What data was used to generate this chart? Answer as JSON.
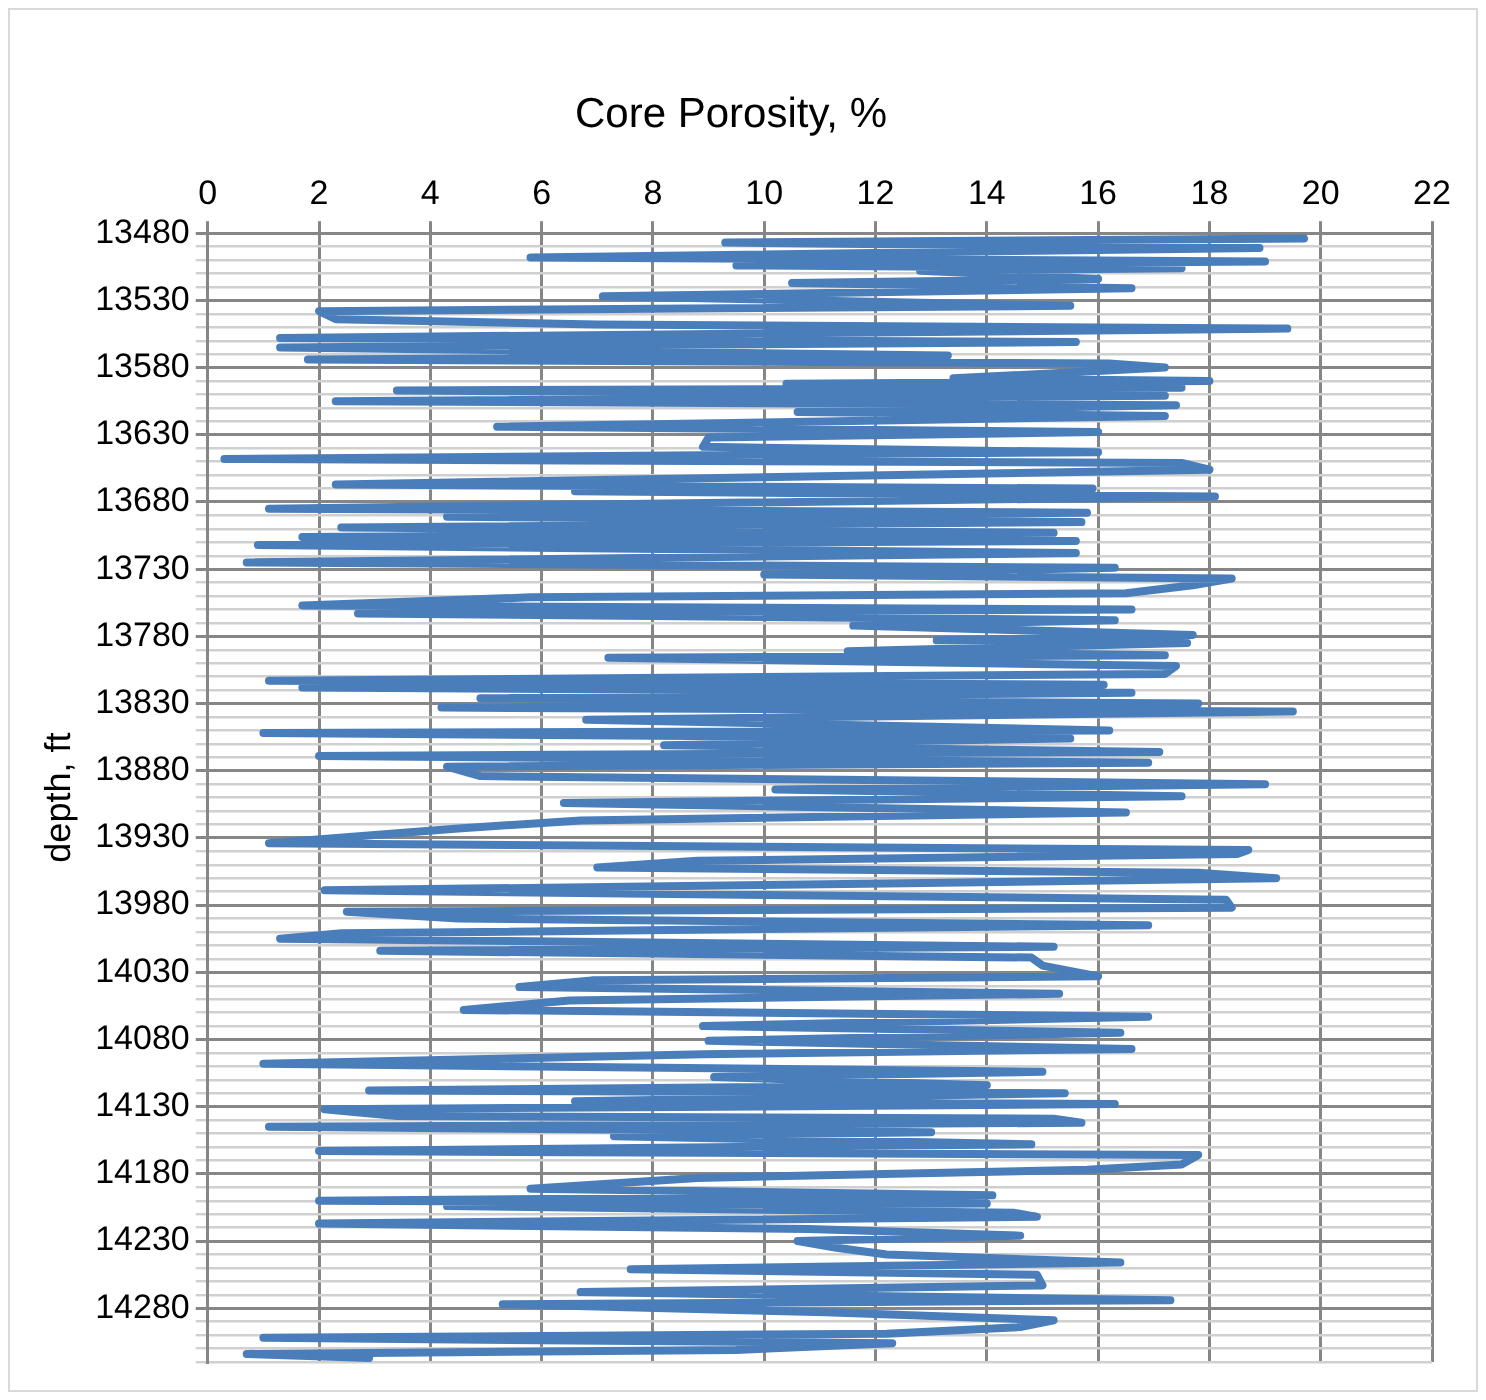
{
  "chart_data": {
    "type": "line",
    "title": "Core Porosity, %",
    "ylabel": "depth, ft",
    "color": "#4a7ebb",
    "grid": true,
    "legend": false,
    "marker": "none",
    "xlim": [
      0,
      22
    ],
    "xticks": [
      0,
      2,
      4,
      6,
      8,
      10,
      12,
      14,
      16,
      18,
      20,
      22
    ],
    "ylim": [
      14320,
      13480
    ],
    "yticks": [
      13480,
      {
        "value": 13490,
        "label": null
      },
      {
        "value": 13500,
        "label": null
      },
      {
        "value": 13510,
        "label": null
      },
      {
        "value": 13520,
        "label": null
      },
      13530,
      {
        "value": 13540,
        "label": null
      },
      {
        "value": 13550,
        "label": null
      },
      {
        "value": 13560,
        "label": null
      },
      {
        "value": 13570,
        "label": null
      },
      13580,
      {
        "value": 13590,
        "label": null
      },
      {
        "value": 13600,
        "label": null
      },
      {
        "value": 13610,
        "label": null
      },
      {
        "value": 13620,
        "label": null
      },
      13630,
      {
        "value": 13640,
        "label": null
      },
      {
        "value": 13650,
        "label": null
      },
      {
        "value": 13660,
        "label": null
      },
      {
        "value": 13670,
        "label": null
      },
      13680,
      {
        "value": 13690,
        "label": null
      },
      {
        "value": 13700,
        "label": null
      },
      {
        "value": 13710,
        "label": null
      },
      {
        "value": 13720,
        "label": null
      },
      13730,
      {
        "value": 13740,
        "label": null
      },
      {
        "value": 13750,
        "label": null
      },
      {
        "value": 13760,
        "label": null
      },
      {
        "value": 13770,
        "label": null
      },
      13780,
      {
        "value": 13790,
        "label": null
      },
      {
        "value": 13800,
        "label": null
      },
      {
        "value": 13810,
        "label": null
      },
      {
        "value": 13820,
        "label": null
      },
      13830,
      {
        "value": 13840,
        "label": null
      },
      {
        "value": 13850,
        "label": null
      },
      {
        "value": 13860,
        "label": null
      },
      {
        "value": 13870,
        "label": null
      },
      13880,
      {
        "value": 13890,
        "label": null
      },
      {
        "value": 13900,
        "label": null
      },
      {
        "value": 13910,
        "label": null
      },
      {
        "value": 13920,
        "label": null
      },
      13930,
      {
        "value": 13940,
        "label": null
      },
      {
        "value": 13950,
        "label": null
      },
      {
        "value": 13960,
        "label": null
      },
      {
        "value": 13970,
        "label": null
      },
      13980,
      {
        "value": 13990,
        "label": null
      },
      {
        "value": 14000,
        "label": null
      },
      {
        "value": 14010,
        "label": null
      },
      {
        "value": 14020,
        "label": null
      },
      14030,
      {
        "value": 14040,
        "label": null
      },
      {
        "value": 14050,
        "label": null
      },
      {
        "value": 14060,
        "label": null
      },
      {
        "value": 14070,
        "label": null
      },
      14080,
      {
        "value": 14090,
        "label": null
      },
      {
        "value": 14100,
        "label": null
      },
      {
        "value": 14110,
        "label": null
      },
      {
        "value": 14120,
        "label": null
      },
      14130,
      {
        "value": 14140,
        "label": null
      },
      {
        "value": 14150,
        "label": null
      },
      {
        "value": 14160,
        "label": null
      },
      {
        "value": 14170,
        "label": null
      },
      14180,
      {
        "value": 14190,
        "label": null
      },
      {
        "value": 14200,
        "label": null
      },
      {
        "value": 14210,
        "label": null
      },
      {
        "value": 14220,
        "label": null
      },
      14230,
      {
        "value": 14240,
        "label": null
      },
      {
        "value": 14250,
        "label": null
      },
      {
        "value": 14260,
        "label": null
      },
      {
        "value": 14270,
        "label": null
      },
      14280,
      {
        "value": 14290,
        "label": null
      },
      {
        "value": 14300,
        "label": null
      },
      {
        "value": 14310,
        "label": null
      },
      {
        "value": 14320,
        "label": null
      }
    ],
    "x": [
      19.7,
      9.3,
      18.9,
      5.8,
      19.0,
      9.5,
      17.5,
      12.8,
      16.0,
      10.5,
      16.6,
      7.1,
      15.5,
      2.0,
      2.3,
      7.0,
      19.4,
      1.3,
      15.6,
      1.3,
      13.3,
      1.8,
      16.2,
      17.2,
      13.4,
      18.0,
      10.4,
      17.5,
      3.4,
      17.2,
      2.3,
      17.4,
      10.6,
      17.2,
      5.2,
      16.0,
      9.0,
      8.9,
      16.0,
      0.3,
      17.5,
      18.0,
      2.3,
      15.9,
      6.6,
      18.1,
      1.1,
      15.8,
      4.3,
      15.7,
      2.4,
      15.2,
      1.7,
      15.6,
      0.9,
      15.6,
      0.7,
      16.3,
      10.0,
      18.4,
      17.7,
      16.5,
      5.8,
      1.7,
      16.6,
      2.7,
      16.3,
      11.6,
      17.7,
      13.1,
      17.6,
      11.5,
      17.2,
      7.2,
      17.4,
      17.2,
      1.1,
      16.1,
      1.7,
      16.6,
      4.9,
      17.8,
      4.2,
      19.5,
      6.8,
      16.2,
      1.0,
      15.5,
      8.2,
      17.1,
      2.0,
      16.9,
      4.3,
      4.9,
      19.0,
      10.2,
      17.5,
      6.4,
      16.5,
      6.7,
      4.5,
      1.1,
      18.7,
      18.5,
      8.8,
      7.0,
      17.8,
      19.2,
      12.2,
      2.1,
      18.3,
      18.4,
      2.5,
      4.5,
      16.9,
      2.4,
      1.3,
      15.2,
      3.1,
      14.8,
      15.0,
      16.0,
      6.9,
      5.6,
      15.3,
      6.5,
      4.6,
      16.9,
      8.9,
      16.4,
      9.0,
      16.6,
      8.9,
      1.0,
      15.0,
      9.1,
      14.0,
      2.9,
      15.4,
      6.6,
      16.3,
      2.1,
      3.4,
      15.2,
      15.7,
      1.1,
      13.0,
      7.3,
      14.8,
      2.0,
      17.8,
      17.5,
      15.8,
      8.8,
      5.8,
      14.1,
      2.0,
      14.0,
      4.3,
      14.5,
      14.9,
      2.0,
      10.8,
      14.6,
      10.6,
      11.3,
      12.2,
      16.4,
      7.6,
      14.9,
      15.0,
      6.7,
      17.3,
      5.3,
      11.1,
      15.2,
      14.6,
      12.2,
      1.0,
      12.3,
      9.5,
      0.7,
      2.9
    ],
    "values": [
      13484,
      13487,
      13491,
      13498,
      13501,
      13504,
      13506,
      13508,
      13514,
      13517,
      13521,
      13527,
      13534,
      13538,
      13544,
      13548,
      13551,
      13558,
      13561,
      13565,
      13571,
      13574,
      13577,
      13580,
      13588,
      13590,
      13592,
      13595,
      13597,
      13601,
      13605,
      13608,
      13613,
      13616,
      13624,
      13628,
      13632,
      13639,
      13643,
      13648,
      13651,
      13656,
      13667,
      13670,
      13672,
      13676,
      13685,
      13688,
      13691,
      13695,
      13699,
      13703,
      13706,
      13709,
      13712,
      13718,
      13725,
      13729,
      13734,
      13737,
      13742,
      13748,
      13751,
      13757,
      13760,
      13763,
      13768,
      13772,
      13779,
      13783,
      13785,
      13791,
      13794,
      13796,
      13802,
      13808,
      13813,
      13816,
      13818,
      13822,
      13826,
      13830,
      13833,
      13836,
      13842,
      13850,
      13852,
      13856,
      13861,
      13866,
      13869,
      13874,
      13877,
      13884,
      13890,
      13894,
      13899,
      13904,
      13911,
      13917,
      13923,
      13934,
      13939,
      13942,
      13947,
      13952,
      13956,
      13960,
      13964,
      13969,
      13976,
      13982,
      13985,
      13990,
      13995,
      14001,
      14005,
      14011,
      14014,
      14019,
      14025,
      14033,
      14036,
      14041,
      14046,
      14051,
      14058,
      14063,
      14070,
      14075,
      14081,
      14087,
      14091,
      14098,
      14104,
      14108,
      14114,
      14118,
      14120,
      14126,
      14128,
      14132,
      14137,
      14139,
      14142,
      14145,
      14149,
      14152,
      14158,
      14163,
      14166,
      14173,
      14177,
      14183,
      14191,
      14196,
      14200,
      14202,
      14204,
      14209,
      14212,
      14217,
      14221,
      14226,
      14230,
      14235,
      14240,
      14246,
      14251,
      14255,
      14263,
      14268,
      14274,
      14277,
      14283,
      14289,
      14294,
      14299,
      14302,
      14306,
      14311,
      14314,
      14317
    ]
  }
}
